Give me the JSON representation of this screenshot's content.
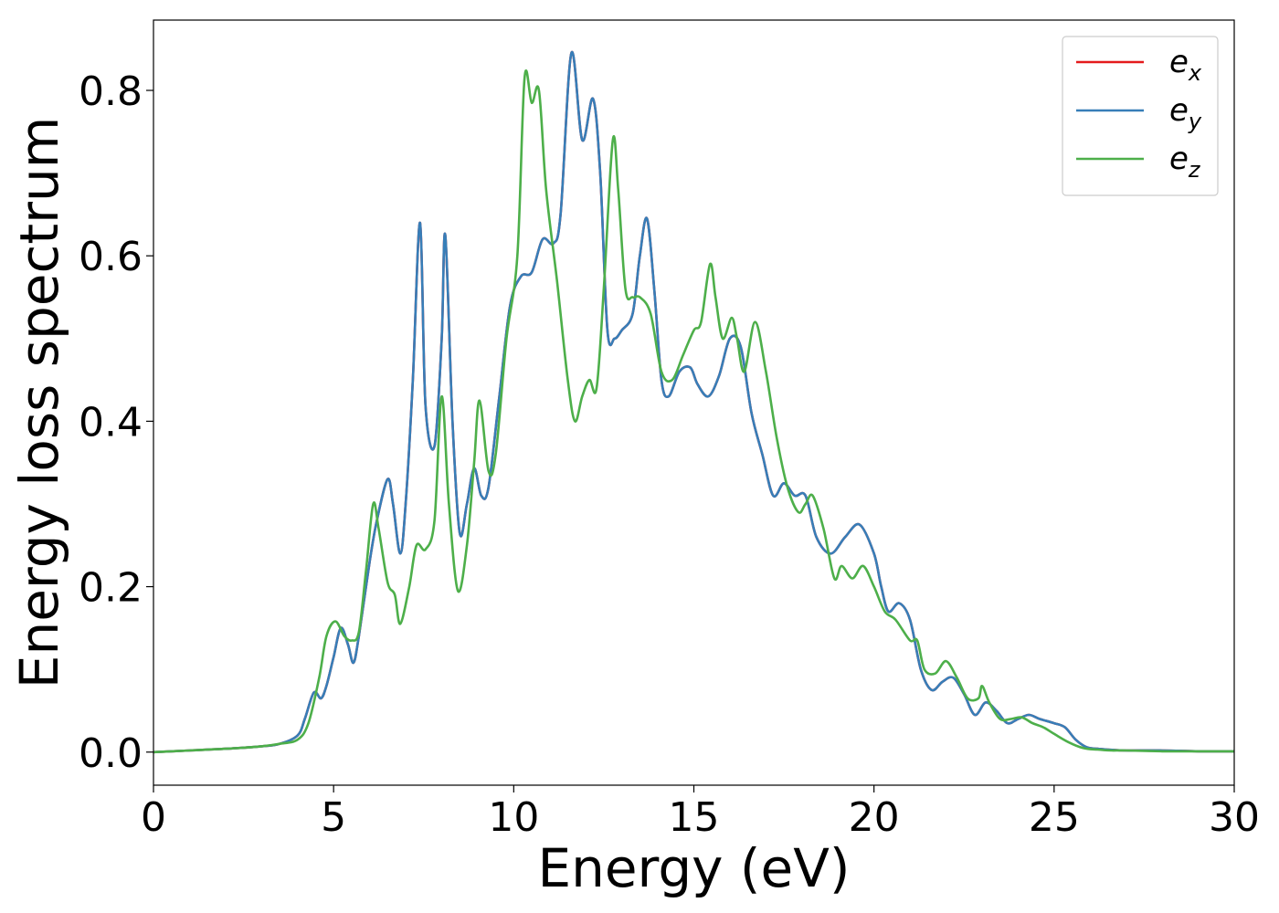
{
  "chart_data": {
    "type": "line",
    "title": "",
    "xlabel": "Energy (eV)",
    "ylabel": "Energy loss spectrum",
    "xlim": [
      0,
      30
    ],
    "ylim": [
      -0.04,
      0.885
    ],
    "xticks": [
      0,
      5,
      10,
      15,
      20,
      25,
      30
    ],
    "yticks": [
      0.0,
      0.2,
      0.4,
      0.6,
      0.8
    ],
    "xtick_labels": [
      "0",
      "5",
      "10",
      "15",
      "20",
      "25",
      "30"
    ],
    "ytick_labels": [
      "0.0",
      "0.2",
      "0.4",
      "0.6",
      "0.8"
    ],
    "grid": false,
    "legend_position": "top-right",
    "series": [
      {
        "name": "e_x",
        "label_base": "e",
        "label_sub": "x",
        "color": "#e41a1c",
        "x": [
          0,
          1,
          2,
          3,
          3.5,
          4,
          4.2,
          4.45,
          4.65,
          4.8,
          5.0,
          5.2,
          5.4,
          5.55,
          5.7,
          6.0,
          6.2,
          6.5,
          6.65,
          6.85,
          7.0,
          7.2,
          7.4,
          7.55,
          7.8,
          8.0,
          8.1,
          8.3,
          8.5,
          8.7,
          8.9,
          9.1,
          9.3,
          9.6,
          9.9,
          10.2,
          10.5,
          10.8,
          11.1,
          11.3,
          11.6,
          11.9,
          12.2,
          12.4,
          12.6,
          12.8,
          13.0,
          13.3,
          13.5,
          13.7,
          13.9,
          14.1,
          14.3,
          14.6,
          14.9,
          15.1,
          15.4,
          15.7,
          16.0,
          16.3,
          16.6,
          16.9,
          17.2,
          17.5,
          17.8,
          18.1,
          18.4,
          18.8,
          19.2,
          19.6,
          20.0,
          20.2,
          20.4,
          20.7,
          21.0,
          21.3,
          21.6,
          21.9,
          22.2,
          22.5,
          22.8,
          23.1,
          23.4,
          23.7,
          24.0,
          24.3,
          24.6,
          25.0,
          25.3,
          25.6,
          25.9,
          26.2,
          26.5,
          27.0,
          28.0,
          29.0,
          30.0
        ],
        "y": [
          0,
          0.002,
          0.004,
          0.007,
          0.01,
          0.02,
          0.04,
          0.072,
          0.065,
          0.08,
          0.115,
          0.15,
          0.13,
          0.108,
          0.14,
          0.23,
          0.28,
          0.33,
          0.3,
          0.24,
          0.3,
          0.45,
          0.64,
          0.42,
          0.37,
          0.5,
          0.625,
          0.4,
          0.265,
          0.3,
          0.343,
          0.31,
          0.32,
          0.43,
          0.54,
          0.575,
          0.58,
          0.62,
          0.615,
          0.65,
          0.845,
          0.74,
          0.79,
          0.7,
          0.51,
          0.5,
          0.51,
          0.53,
          0.6,
          0.645,
          0.56,
          0.45,
          0.43,
          0.46,
          0.465,
          0.445,
          0.43,
          0.455,
          0.5,
          0.49,
          0.41,
          0.36,
          0.31,
          0.325,
          0.31,
          0.31,
          0.26,
          0.24,
          0.26,
          0.275,
          0.24,
          0.2,
          0.17,
          0.18,
          0.16,
          0.1,
          0.075,
          0.085,
          0.09,
          0.07,
          0.045,
          0.06,
          0.05,
          0.035,
          0.04,
          0.045,
          0.04,
          0.035,
          0.03,
          0.015,
          0.006,
          0.004,
          0.003,
          0.002,
          0.002,
          0.001,
          0.001
        ]
      },
      {
        "name": "e_y",
        "label_base": "e",
        "label_sub": "y",
        "color": "#377eb8",
        "x": [
          0,
          1,
          2,
          3,
          3.5,
          4,
          4.2,
          4.45,
          4.65,
          4.8,
          5.0,
          5.2,
          5.4,
          5.55,
          5.7,
          6.0,
          6.2,
          6.5,
          6.65,
          6.85,
          7.0,
          7.2,
          7.4,
          7.55,
          7.8,
          8.0,
          8.1,
          8.3,
          8.5,
          8.7,
          8.9,
          9.1,
          9.3,
          9.6,
          9.9,
          10.2,
          10.5,
          10.8,
          11.1,
          11.3,
          11.6,
          11.9,
          12.2,
          12.4,
          12.6,
          12.8,
          13.0,
          13.3,
          13.5,
          13.7,
          13.9,
          14.1,
          14.3,
          14.6,
          14.9,
          15.1,
          15.4,
          15.7,
          16.0,
          16.3,
          16.6,
          16.9,
          17.2,
          17.5,
          17.8,
          18.1,
          18.4,
          18.8,
          19.2,
          19.6,
          20.0,
          20.2,
          20.4,
          20.7,
          21.0,
          21.3,
          21.6,
          21.9,
          22.2,
          22.5,
          22.8,
          23.1,
          23.4,
          23.7,
          24.0,
          24.3,
          24.6,
          25.0,
          25.3,
          25.6,
          25.9,
          26.2,
          26.5,
          27.0,
          28.0,
          29.0,
          30.0
        ],
        "y": [
          0,
          0.002,
          0.004,
          0.007,
          0.01,
          0.02,
          0.04,
          0.072,
          0.065,
          0.08,
          0.115,
          0.15,
          0.13,
          0.108,
          0.14,
          0.23,
          0.28,
          0.33,
          0.3,
          0.24,
          0.3,
          0.45,
          0.64,
          0.42,
          0.37,
          0.5,
          0.625,
          0.4,
          0.265,
          0.3,
          0.343,
          0.31,
          0.32,
          0.43,
          0.54,
          0.575,
          0.58,
          0.62,
          0.615,
          0.65,
          0.845,
          0.74,
          0.79,
          0.7,
          0.51,
          0.5,
          0.51,
          0.53,
          0.6,
          0.645,
          0.56,
          0.45,
          0.43,
          0.46,
          0.465,
          0.445,
          0.43,
          0.455,
          0.5,
          0.49,
          0.41,
          0.36,
          0.31,
          0.325,
          0.31,
          0.31,
          0.26,
          0.24,
          0.26,
          0.275,
          0.24,
          0.2,
          0.17,
          0.18,
          0.16,
          0.1,
          0.075,
          0.085,
          0.09,
          0.07,
          0.045,
          0.06,
          0.05,
          0.035,
          0.04,
          0.045,
          0.04,
          0.035,
          0.03,
          0.015,
          0.006,
          0.004,
          0.003,
          0.002,
          0.002,
          0.001,
          0.001
        ]
      },
      {
        "name": "e_z",
        "label_base": "e",
        "label_sub": "z",
        "color": "#4daf4a",
        "x": [
          0,
          1,
          2,
          3,
          3.5,
          4,
          4.3,
          4.6,
          4.8,
          5.05,
          5.3,
          5.5,
          5.7,
          5.9,
          6.1,
          6.25,
          6.5,
          6.7,
          6.85,
          7.1,
          7.3,
          7.55,
          7.8,
          8.0,
          8.2,
          8.45,
          8.7,
          8.9,
          9.05,
          9.3,
          9.5,
          9.8,
          10.1,
          10.3,
          10.5,
          10.7,
          10.9,
          11.2,
          11.5,
          11.7,
          11.9,
          12.1,
          12.3,
          12.5,
          12.75,
          12.9,
          13.1,
          13.3,
          13.5,
          13.8,
          14.1,
          14.4,
          14.7,
          15.0,
          15.2,
          15.45,
          15.6,
          15.8,
          16.05,
          16.2,
          16.4,
          16.7,
          17.0,
          17.3,
          17.6,
          17.9,
          18.1,
          18.3,
          18.6,
          18.9,
          19.1,
          19.4,
          19.7,
          20.0,
          20.3,
          20.6,
          21.0,
          21.2,
          21.4,
          21.7,
          22.0,
          22.3,
          22.6,
          22.9,
          23.0,
          23.2,
          23.5,
          23.8,
          24.1,
          24.4,
          24.7,
          25.0,
          25.4,
          25.8,
          26.2,
          26.6,
          27.0,
          28.0,
          29.0,
          30.0
        ],
        "y": [
          0,
          0.002,
          0.004,
          0.007,
          0.01,
          0.015,
          0.035,
          0.09,
          0.14,
          0.158,
          0.14,
          0.135,
          0.145,
          0.22,
          0.3,
          0.27,
          0.205,
          0.19,
          0.155,
          0.2,
          0.25,
          0.245,
          0.28,
          0.43,
          0.3,
          0.195,
          0.25,
          0.35,
          0.425,
          0.34,
          0.36,
          0.5,
          0.6,
          0.815,
          0.785,
          0.8,
          0.68,
          0.57,
          0.45,
          0.4,
          0.43,
          0.45,
          0.44,
          0.56,
          0.74,
          0.68,
          0.56,
          0.55,
          0.55,
          0.53,
          0.46,
          0.45,
          0.48,
          0.51,
          0.52,
          0.59,
          0.55,
          0.5,
          0.525,
          0.5,
          0.46,
          0.52,
          0.46,
          0.38,
          0.32,
          0.29,
          0.3,
          0.31,
          0.27,
          0.21,
          0.225,
          0.21,
          0.225,
          0.2,
          0.17,
          0.16,
          0.135,
          0.135,
          0.1,
          0.095,
          0.11,
          0.09,
          0.065,
          0.065,
          0.08,
          0.06,
          0.04,
          0.04,
          0.042,
          0.035,
          0.03,
          0.022,
          0.012,
          0.005,
          0.003,
          0.002,
          0.002,
          0.001,
          0.001,
          0.001
        ]
      }
    ]
  }
}
